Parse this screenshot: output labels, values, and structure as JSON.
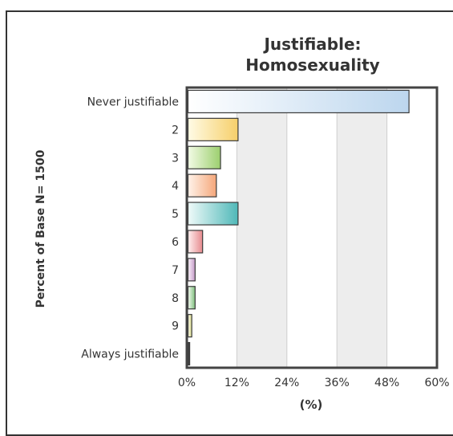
{
  "chart_data": {
    "type": "bar",
    "orientation": "horizontal",
    "title_lines": [
      "Justifiable:",
      "Homosexuality"
    ],
    "xlabel": "(%)",
    "ylabel": "Percent of Base N= 1500",
    "xlim": [
      0,
      60
    ],
    "xticks": [
      "0%",
      "12%",
      "24%",
      "36%",
      "48%",
      "60%"
    ],
    "grid": "alternating vertical bands",
    "categories": [
      "Never justifiable",
      "2",
      "3",
      "4",
      "5",
      "6",
      "7",
      "8",
      "9",
      "Always justifiable"
    ],
    "values": [
      53.0,
      12.0,
      7.8,
      6.8,
      12.0,
      3.5,
      1.7,
      1.7,
      0.9,
      0.4
    ],
    "colors": [
      [
        "#ffffff",
        "#bcd6ee"
      ],
      [
        "#fffbe6",
        "#f6cf6a"
      ],
      [
        "#f3fbe6",
        "#9ccf6e"
      ],
      [
        "#fff3ea",
        "#f5a77a"
      ],
      [
        "#effaf9",
        "#4fb8b8"
      ],
      [
        "#fff0f0",
        "#e6898d"
      ],
      [
        "#faf2fa",
        "#c59ac8"
      ],
      [
        "#f2f9ee",
        "#7fc07f"
      ],
      [
        "#fbfbe9",
        "#d7d88a"
      ],
      [
        "#666666",
        "#222222"
      ]
    ]
  }
}
